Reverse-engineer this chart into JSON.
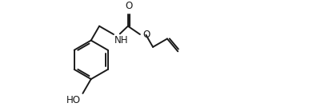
{
  "bg_color": "#ffffff",
  "line_color": "#1a1a1a",
  "line_width": 1.4,
  "font_size": 8.5,
  "figsize": [
    4.02,
    1.34
  ],
  "dpi": 100,
  "xlim": [
    0,
    10
  ],
  "ylim": [
    0,
    3.32
  ]
}
